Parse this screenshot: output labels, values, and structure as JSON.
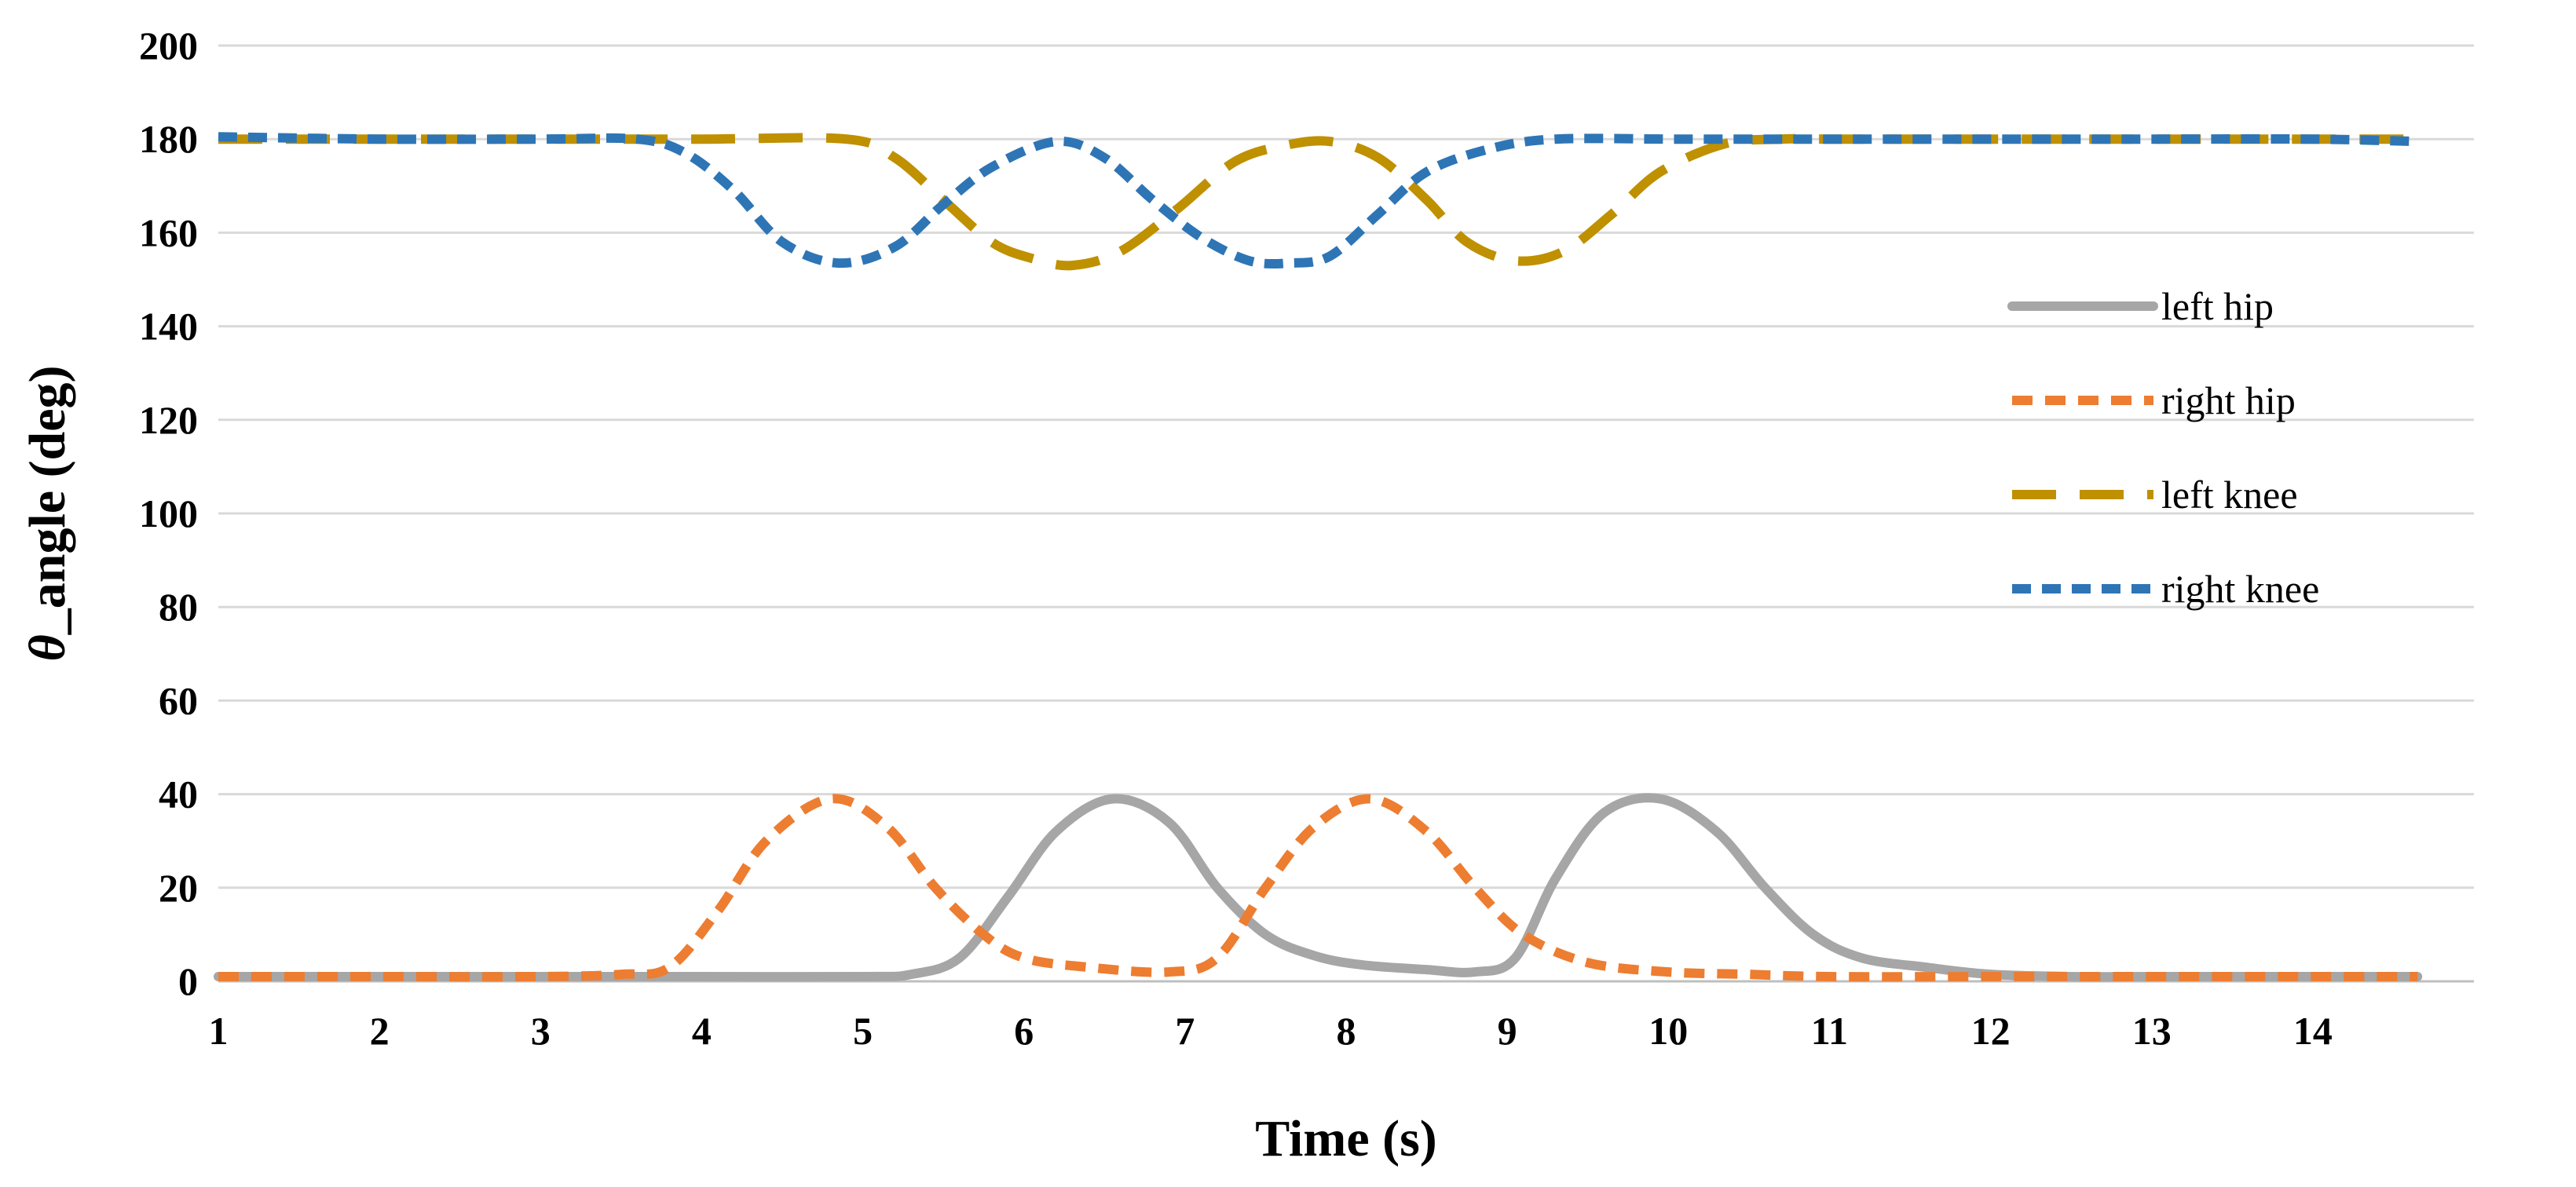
{
  "chart_data": {
    "type": "line",
    "title": "",
    "xlabel": "Time (s)",
    "ylabel_symbol": "θ",
    "ylabel_rest": "_angle (deg)",
    "xlim": [
      1,
      15
    ],
    "ylim": [
      0,
      200
    ],
    "xticks": [
      1,
      2,
      3,
      4,
      5,
      6,
      7,
      8,
      9,
      10,
      11,
      12,
      13,
      14
    ],
    "xtick_labels": [
      "1",
      "2",
      "3",
      "4",
      "5",
      "6",
      "7",
      "8",
      "9",
      "10",
      "11",
      "12",
      "13",
      "14"
    ],
    "yticks": [
      0,
      20,
      40,
      60,
      80,
      100,
      120,
      140,
      160,
      180,
      200
    ],
    "ytick_labels": [
      "0",
      "20",
      "40",
      "60",
      "80",
      "100",
      "120",
      "140",
      "160",
      "180",
      "200"
    ],
    "grid": "horizontal",
    "legend_position": "right",
    "series": [
      {
        "name": "left hip",
        "color": "#A6A6A6",
        "style": "solid",
        "x": [
          1,
          2,
          3,
          4,
          5,
          5.3,
          5.6,
          5.9,
          6.2,
          6.55,
          6.9,
          7.2,
          7.5,
          7.8,
          8.1,
          8.5,
          8.8,
          9.05,
          9.3,
          9.6,
          9.95,
          10.3,
          10.6,
          10.9,
          11.2,
          11.6,
          12,
          12.5,
          13,
          13.5,
          14,
          14.65
        ],
        "y": [
          1,
          1,
          1,
          1,
          1,
          1.5,
          5,
          18,
          32,
          39,
          34,
          20,
          10,
          5.5,
          3.5,
          2.5,
          2,
          5,
          22,
          36,
          39,
          32,
          20,
          10,
          5,
          3,
          1.5,
          1,
          1,
          1,
          1,
          1
        ]
      },
      {
        "name": "right hip",
        "color": "#ED7D31",
        "style": "dash",
        "x": [
          1,
          2,
          3,
          3.5,
          3.8,
          4.1,
          4.4,
          4.8,
          5.15,
          5.45,
          5.75,
          6,
          6.4,
          6.9,
          7.2,
          7.5,
          7.8,
          8.15,
          8.5,
          8.8,
          9.1,
          9.5,
          10,
          10.5,
          11,
          12,
          13,
          14,
          14.65
        ],
        "y": [
          1,
          1,
          1,
          1.5,
          3,
          15,
          30,
          39,
          33,
          20,
          10,
          5,
          3,
          2,
          5,
          20,
          33,
          39,
          32,
          20,
          10,
          4,
          2,
          1.5,
          1,
          1,
          1,
          1,
          1
        ]
      },
      {
        "name": "left knee",
        "color": "#BF9000",
        "style": "longdash",
        "x": [
          1,
          2,
          3,
          4,
          4.9,
          5.2,
          5.5,
          5.8,
          6.05,
          6.3,
          6.6,
          6.95,
          7.3,
          7.6,
          7.9,
          8.2,
          8.5,
          8.75,
          9.05,
          9.35,
          9.65,
          9.95,
          10.35,
          10.7,
          11,
          12,
          13,
          14,
          14.65
        ],
        "y": [
          180,
          180,
          180,
          180,
          180,
          176,
          167,
          158,
          154.5,
          153,
          156,
          165,
          175,
          178.5,
          179.5,
          176,
          167,
          158,
          154,
          156,
          164,
          173,
          179,
          180,
          180,
          180,
          180,
          180,
          180
        ]
      },
      {
        "name": "right knee",
        "color": "#2E75B6",
        "style": "shortdash",
        "x": [
          1,
          2,
          3,
          3.6,
          3.9,
          4.2,
          4.5,
          4.85,
          5.2,
          5.5,
          5.8,
          6.2,
          6.5,
          6.8,
          7.1,
          7.4,
          7.65,
          7.9,
          8.2,
          8.5,
          8.9,
          9.3,
          10,
          10.5,
          11,
          12,
          13,
          14,
          14.65
        ],
        "y": [
          180.5,
          180,
          180,
          180,
          177,
          169,
          158,
          153.5,
          157,
          166,
          174,
          179.5,
          176,
          167,
          159,
          154,
          153.5,
          155,
          164,
          173,
          178,
          180,
          180,
          180,
          180,
          180,
          180,
          180,
          179.5
        ]
      }
    ]
  }
}
